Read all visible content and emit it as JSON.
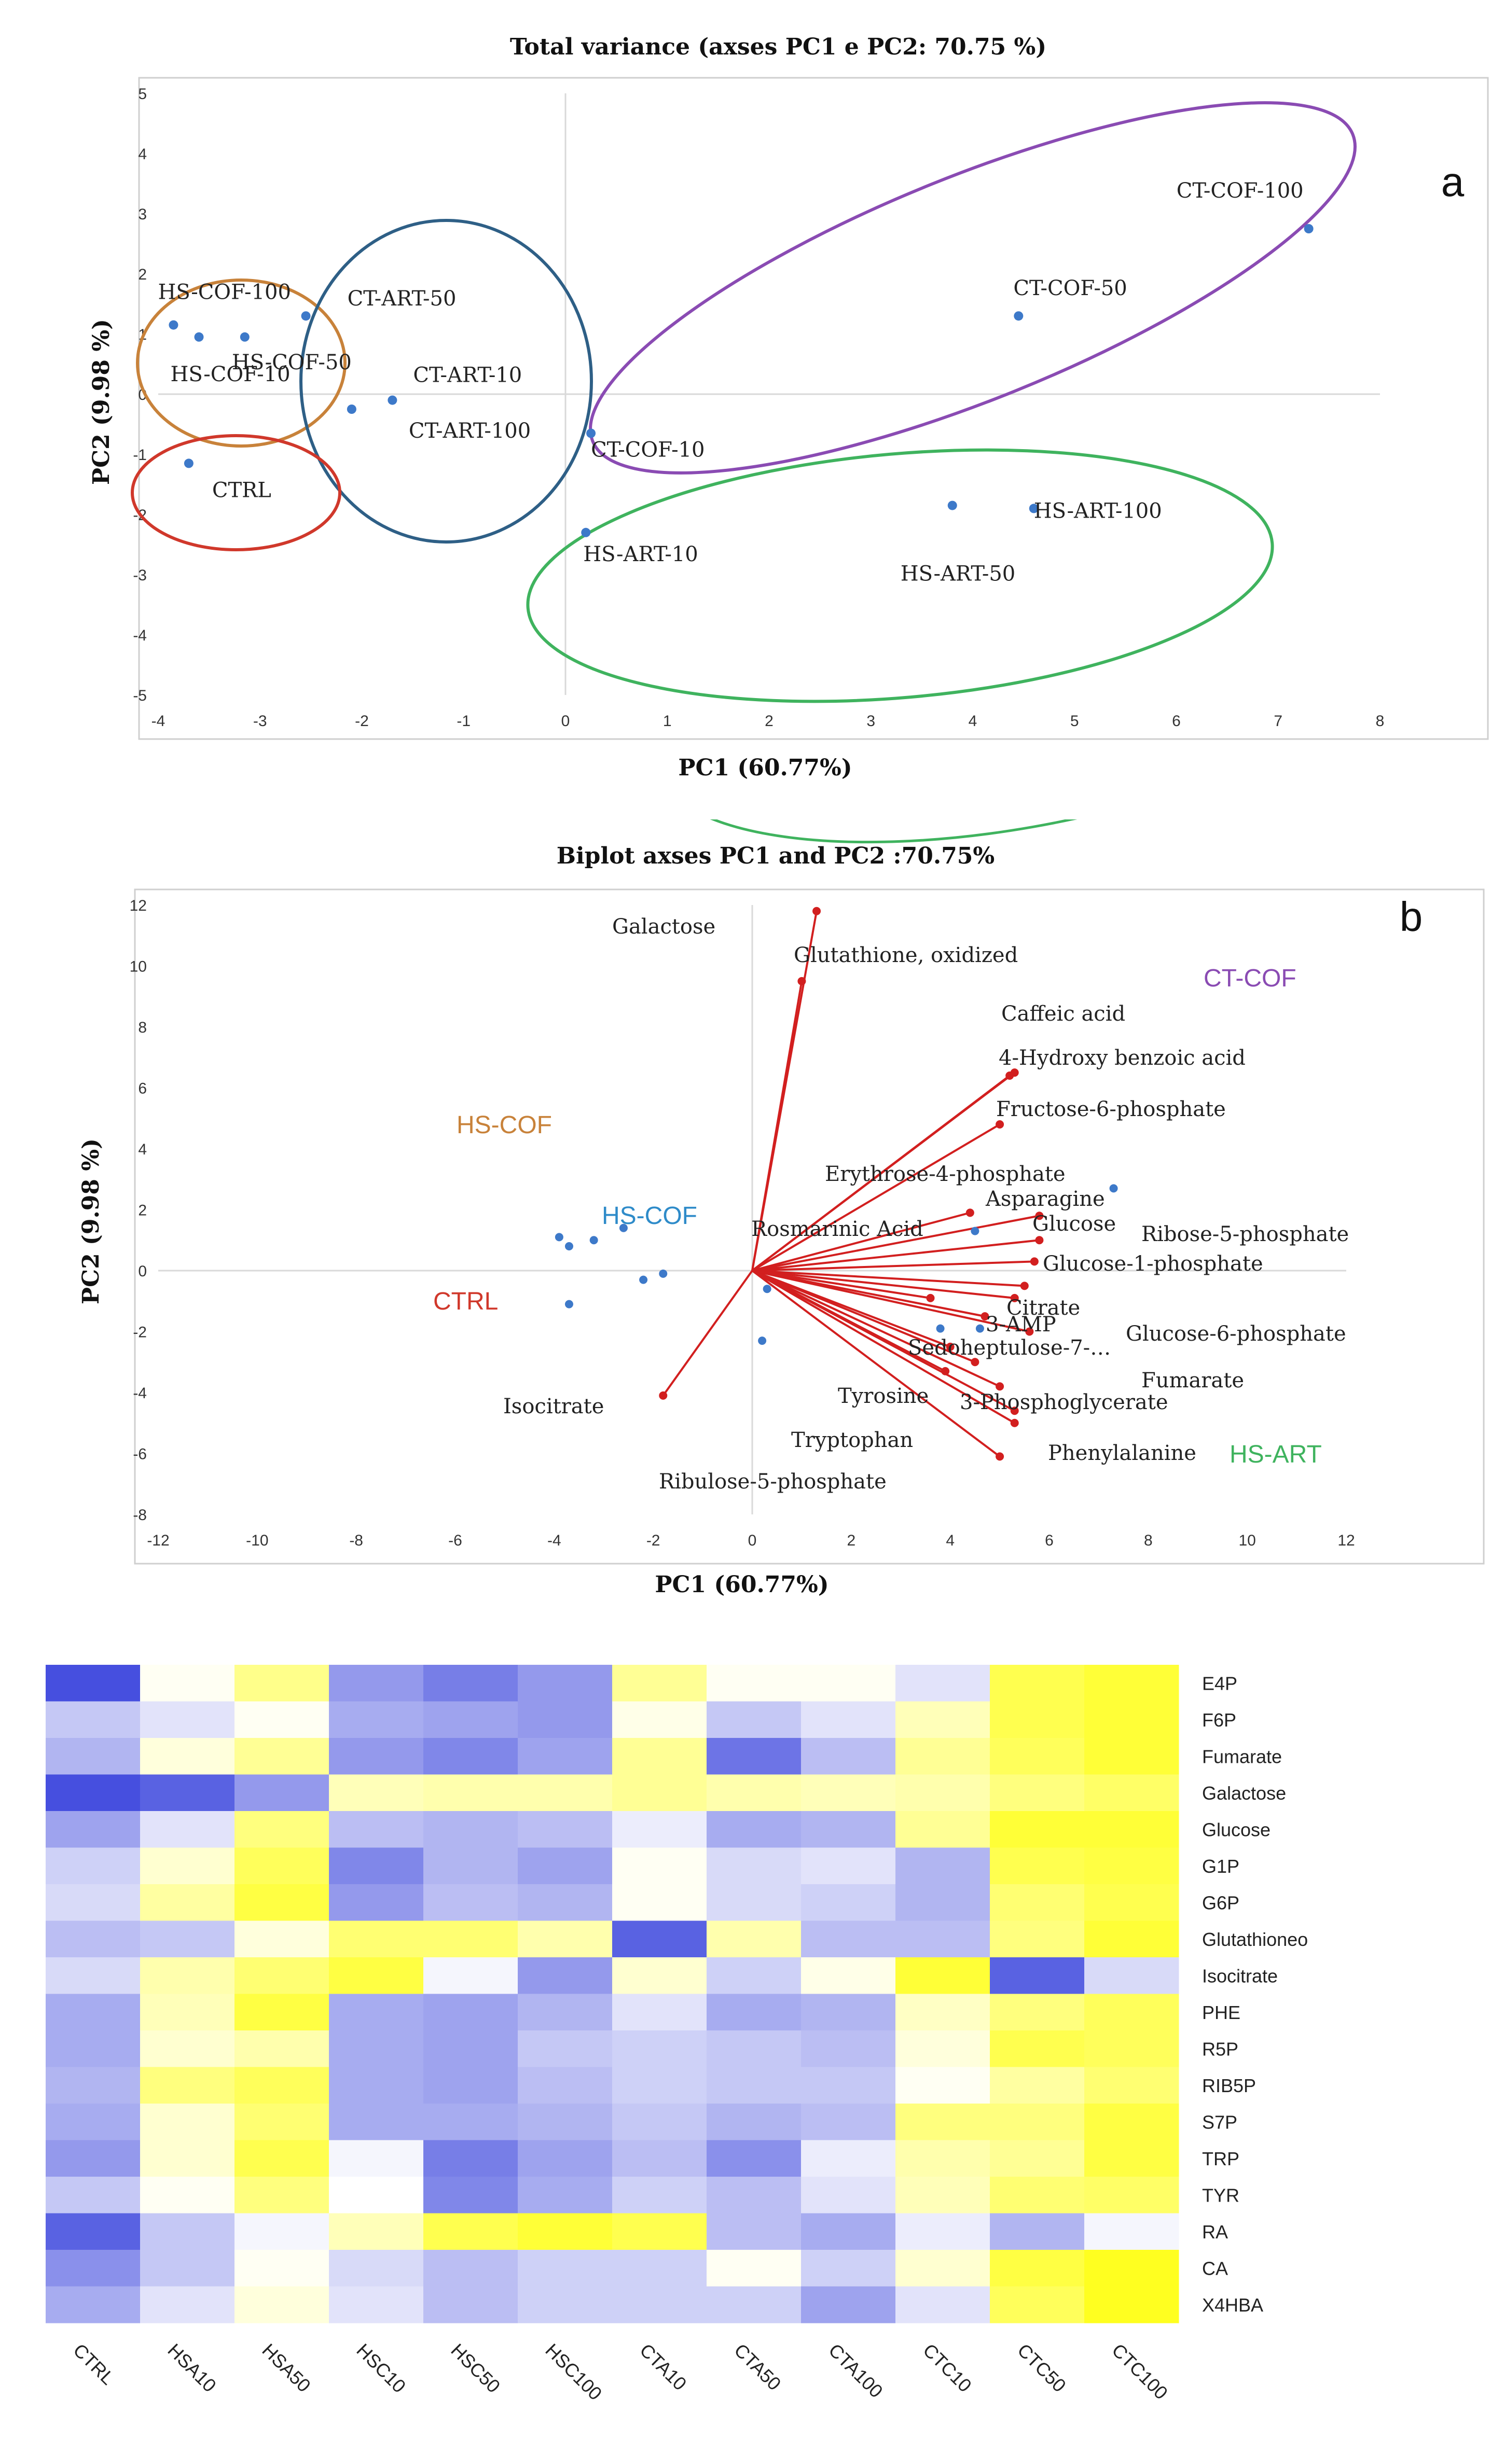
{
  "panel_letters": {
    "a": "a",
    "b": "b"
  },
  "chart_data": [
    {
      "type": "scatter",
      "title": "Total variance (axses PC1 e PC2: 70.75 %)",
      "xlabel": "PC1 (60.77%)",
      "ylabel": "PC2 (9.98 %)",
      "xlim": [
        -4,
        8
      ],
      "ylim": [
        -5,
        5
      ],
      "xticks": [
        -4,
        -3,
        -2,
        -1,
        0,
        1,
        2,
        3,
        4,
        5,
        6,
        7,
        8
      ],
      "yticks": [
        -5,
        -4,
        -3,
        -2,
        -1,
        0,
        1,
        2,
        3,
        4,
        5
      ],
      "points": [
        {
          "label": "HS-COF-100",
          "x": -3.85,
          "y": 1.15
        },
        {
          "label": "HS-COF-50",
          "x": -3.15,
          "y": 0.95
        },
        {
          "label": "HS-COF-10",
          "x": -3.6,
          "y": 0.95
        },
        {
          "label": "CT-ART-50",
          "x": -2.55,
          "y": 1.3
        },
        {
          "label": "CT-ART-10",
          "x": -1.7,
          "y": -0.1
        },
        {
          "label": "CT-ART-100",
          "x": -2.1,
          "y": -0.25
        },
        {
          "label": "CTRL",
          "x": -3.7,
          "y": -1.15
        },
        {
          "label": "CT-COF-10",
          "x": 0.25,
          "y": -0.65
        },
        {
          "label": "HS-ART-10",
          "x": 0.2,
          "y": -2.3
        },
        {
          "label": "HS-ART-50",
          "x": 3.8,
          "y": -1.85
        },
        {
          "label": "HS-ART-100",
          "x": 4.6,
          "y": -1.9
        },
        {
          "label": "CT-COF-50",
          "x": 4.45,
          "y": 1.3
        },
        {
          "label": "CT-COF-100",
          "x": 7.3,
          "y": 2.75
        }
      ],
      "groups": [
        {
          "name": "HS-COF",
          "color": "#c8823a"
        },
        {
          "name": "CT-ART",
          "color": "#2e5f86"
        },
        {
          "name": "CTRL",
          "color": "#d0382b"
        },
        {
          "name": "CT-COF",
          "color": "#8a4bb3"
        },
        {
          "name": "HS-ART",
          "color": "#3fb35e"
        }
      ]
    },
    {
      "type": "scatter",
      "title": "Biplot axses PC1 and PC2 :70.75%",
      "xlabel": "PC1 (60.77%)",
      "ylabel": "PC2 (9.98 %)",
      "xlim": [
        -12,
        12
      ],
      "ylim": [
        -8,
        12
      ],
      "xticks": [
        -12,
        -10,
        -8,
        -6,
        -4,
        -2,
        0,
        2,
        4,
        6,
        8,
        10,
        12
      ],
      "yticks": [
        -8,
        -6,
        -4,
        -2,
        0,
        2,
        4,
        6,
        8,
        10,
        12
      ],
      "group_labels": [
        "CT-COF",
        "HS-COF",
        "HS-COF",
        "CTRL",
        "HS-ART"
      ],
      "observations": [
        {
          "x": -3.9,
          "y": 1.1
        },
        {
          "x": -3.7,
          "y": 0.8
        },
        {
          "x": -3.2,
          "y": 1.0
        },
        {
          "x": -2.6,
          "y": 1.4
        },
        {
          "x": -3.7,
          "y": -1.1
        },
        {
          "x": -2.2,
          "y": -0.3
        },
        {
          "x": -1.8,
          "y": -0.1
        },
        {
          "x": 0.3,
          "y": -0.6
        },
        {
          "x": 0.2,
          "y": -2.3
        },
        {
          "x": 3.8,
          "y": -1.9
        },
        {
          "x": 4.6,
          "y": -1.9
        },
        {
          "x": 4.5,
          "y": 1.3
        },
        {
          "x": 7.3,
          "y": 2.7
        }
      ],
      "loadings": [
        {
          "label": "Galactose",
          "x": 1.3,
          "y": 11.8
        },
        {
          "label": "Glutathione, oxidized",
          "x": 1.0,
          "y": 9.5
        },
        {
          "label": "Caffeic acid",
          "x": 5.3,
          "y": 6.5
        },
        {
          "label": "4-Hydroxy benzoic acid",
          "x": 5.2,
          "y": 6.4
        },
        {
          "label": "Fructose-6-phosphate",
          "x": 5.0,
          "y": 4.8
        },
        {
          "label": "Erythrose-4-phosphate",
          "x": 4.4,
          "y": 1.9
        },
        {
          "label": "Asparagine",
          "x": 5.8,
          "y": 1.8
        },
        {
          "label": "Ribose-5-phosphate",
          "x": 5.8,
          "y": 1.0
        },
        {
          "label": "Glucose",
          "x": 5.7,
          "y": 0.3
        },
        {
          "label": "Glucose-1-phosphate",
          "x": 5.5,
          "y": -0.5
        },
        {
          "label": "Citrate",
          "x": 5.3,
          "y": -0.9
        },
        {
          "label": "3-AMP",
          "x": 4.7,
          "y": -1.5
        },
        {
          "label": "Glucose-6-phosphate",
          "x": 5.6,
          "y": -2.0
        },
        {
          "label": "Sedoheptulose-7-…",
          "x": 4.0,
          "y": -2.5
        },
        {
          "label": "Fumarate",
          "x": 5.0,
          "y": -3.8
        },
        {
          "label": "3-Phosphoglycerate",
          "x": 5.3,
          "y": -4.6
        },
        {
          "label": "Tyrosine",
          "x": 5.3,
          "y": -5.0
        },
        {
          "label": "Phenylalanine",
          "x": 5.0,
          "y": -6.1
        },
        {
          "label": "Tryptophan",
          "x": 4.5,
          "y": -3.0
        },
        {
          "label": "Ribulose-5-phosphate",
          "x": 3.9,
          "y": -3.3
        },
        {
          "label": "Rosmarinic Acid",
          "x": 3.6,
          "y": -0.9
        },
        {
          "label": "Isocitrate",
          "x": -1.8,
          "y": -4.1
        }
      ],
      "loading_text": [
        "Galactose",
        "Glutathione, oxidized",
        "Caffeic acid",
        "4-Hydroxy benzoic acid",
        "Fructose-6-phosphate",
        "Erythrose-4-phosphate",
        "Asparagine",
        "Glucose",
        "Ribose-5-phosphate",
        "Rosmarinic Acid",
        "Glucose-1-phosphate",
        "Citrate",
        "3-AMP",
        "Sedoheptulose-7-…",
        "Glucose-6-phosphate",
        "Fumarate",
        "Tyrosine",
        "3-Phosphoglycerate",
        "Tryptophan",
        "Phenylalanine",
        "Ribulose-5-phosphate",
        "Isocitrate"
      ]
    },
    {
      "type": "heatmap",
      "title": "",
      "columns": [
        "CTRL",
        "HSA10",
        "HSA50",
        "HSC10",
        "HSC50",
        "HSC100",
        "CTA10",
        "CTA50",
        "CTA100",
        "CTC10",
        "CTC50",
        "CTC100"
      ],
      "rows": [
        "E4P",
        "F6P",
        "Fumarate",
        "Galactose",
        "Glucose",
        "G1P",
        "G6P",
        "Glutathioneo",
        "Isocitrate",
        "PHE",
        "R5P",
        "RIB5P",
        "S7P",
        "TRP",
        "TYR",
        "RA",
        "CA",
        "X4HBA"
      ],
      "colorscale": {
        "low": "#3c46dd",
        "mid": "#ffffff",
        "high": "#ffff14"
      },
      "values": [
        [
          -0.95,
          0.05,
          0.5,
          -0.55,
          -0.7,
          -0.55,
          0.45,
          0.05,
          0.05,
          -0.15,
          0.75,
          0.85
        ],
        [
          -0.3,
          -0.15,
          0.05,
          -0.45,
          -0.5,
          -0.55,
          0.1,
          -0.3,
          -0.15,
          0.3,
          0.75,
          0.85
        ],
        [
          -0.4,
          0.15,
          0.45,
          -0.55,
          -0.65,
          -0.5,
          0.45,
          -0.75,
          -0.35,
          0.45,
          0.7,
          0.85
        ],
        [
          -0.95,
          -0.85,
          -0.55,
          0.3,
          0.35,
          0.35,
          0.45,
          0.35,
          0.3,
          0.35,
          0.55,
          0.65
        ],
        [
          -0.5,
          -0.15,
          0.55,
          -0.35,
          -0.4,
          -0.35,
          -0.1,
          -0.45,
          -0.4,
          0.45,
          0.85,
          0.85
        ],
        [
          -0.25,
          0.2,
          0.7,
          -0.65,
          -0.4,
          -0.5,
          0.05,
          -0.2,
          -0.15,
          -0.4,
          0.75,
          0.8
        ],
        [
          -0.2,
          0.4,
          0.8,
          -0.55,
          -0.35,
          -0.4,
          0.05,
          -0.2,
          -0.25,
          -0.4,
          0.6,
          0.75
        ],
        [
          -0.35,
          -0.3,
          0.15,
          0.6,
          0.6,
          0.35,
          -0.85,
          0.35,
          -0.35,
          -0.35,
          0.55,
          0.85
        ],
        [
          -0.2,
          0.35,
          0.6,
          0.8,
          -0.05,
          -0.55,
          0.2,
          -0.25,
          0.1,
          0.85,
          -0.85,
          -0.2
        ],
        [
          -0.45,
          0.3,
          0.8,
          -0.45,
          -0.5,
          -0.4,
          -0.15,
          -0.45,
          -0.4,
          0.25,
          0.55,
          0.7
        ],
        [
          -0.45,
          0.2,
          0.35,
          -0.45,
          -0.5,
          -0.3,
          -0.25,
          -0.3,
          -0.35,
          0.15,
          0.75,
          0.7
        ],
        [
          -0.4,
          0.55,
          0.7,
          -0.45,
          -0.5,
          -0.35,
          -0.25,
          -0.3,
          -0.3,
          0.05,
          0.4,
          0.6
        ],
        [
          -0.45,
          0.2,
          0.6,
          -0.45,
          -0.45,
          -0.4,
          -0.3,
          -0.4,
          -0.35,
          0.55,
          0.55,
          0.8
        ],
        [
          -0.55,
          0.2,
          0.75,
          -0.05,
          -0.7,
          -0.5,
          -0.35,
          -0.6,
          -0.1,
          0.35,
          0.45,
          0.8
        ],
        [
          -0.3,
          0.05,
          0.55,
          0.0,
          -0.65,
          -0.45,
          -0.25,
          -0.35,
          -0.15,
          0.3,
          0.6,
          0.65
        ],
        [
          -0.85,
          -0.3,
          -0.05,
          0.3,
          0.75,
          0.85,
          0.75,
          -0.35,
          -0.45,
          -0.1,
          -0.4,
          -0.05
        ],
        [
          -0.6,
          -0.3,
          0.05,
          -0.2,
          -0.35,
          -0.25,
          -0.25,
          0.05,
          -0.25,
          0.2,
          0.8,
          0.95
        ],
        [
          -0.45,
          -0.15,
          0.15,
          -0.15,
          -0.35,
          -0.25,
          -0.25,
          -0.25,
          -0.5,
          -0.15,
          0.7,
          0.95
        ]
      ]
    }
  ]
}
